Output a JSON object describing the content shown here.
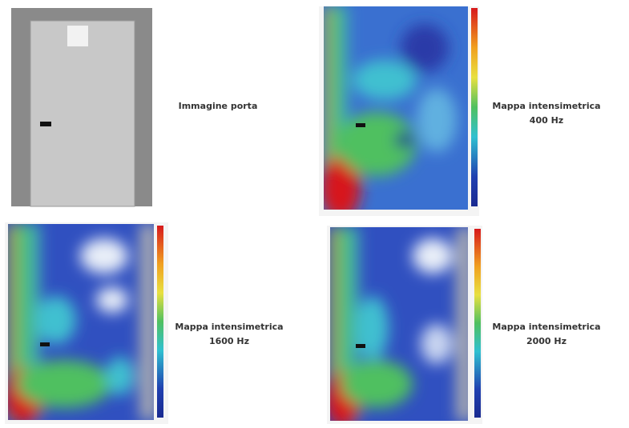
{
  "panels": [
    {
      "caption": [
        "Immagine porta"
      ]
    },
    {
      "caption": [
        "Mappa intensimetrica",
        "400 Hz"
      ]
    },
    {
      "caption": [
        "Mappa intensimetrica",
        "1600 Hz"
      ]
    },
    {
      "caption": [
        "Mappa intensimetrica",
        "2000 Hz"
      ]
    }
  ]
}
